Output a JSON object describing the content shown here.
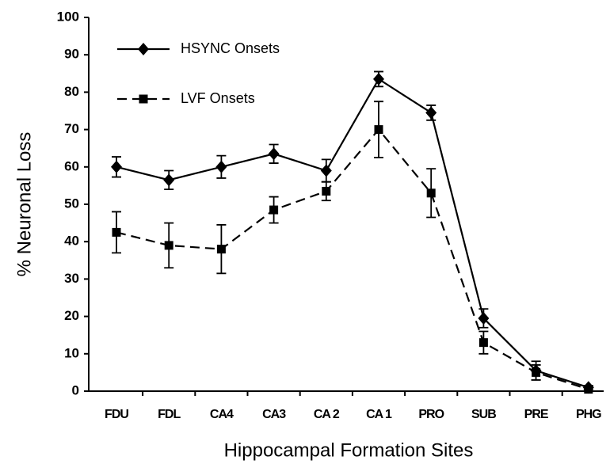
{
  "chart_data": {
    "type": "line",
    "xlabel": "Hippocampal Formation Sites",
    "ylabel": "% Neuronal Loss",
    "categories": [
      "FDU",
      "FDL",
      "CA4",
      "CA3",
      "CA 2",
      "CA 1",
      "PRO",
      "SUB",
      "PRE",
      "PHG"
    ],
    "series": [
      {
        "name": "HSYNC Onsets",
        "color": "#000000",
        "dash": "solid",
        "marker": "diamond",
        "values": [
          60,
          56.5,
          60,
          63.5,
          59,
          83.5,
          74.5,
          19.5,
          5.5,
          1
        ],
        "errors": [
          2.7,
          2.5,
          3,
          2.5,
          3,
          2,
          2,
          2.5,
          2.5,
          0.5
        ]
      },
      {
        "name": "LVF Onsets",
        "color": "#000000",
        "dash": "dashed",
        "marker": "square",
        "values": [
          42.5,
          39,
          38,
          48.5,
          53.5,
          70,
          53,
          13,
          5,
          0.5
        ],
        "errors": [
          5.5,
          6,
          6.5,
          3.5,
          2.5,
          7.5,
          6.5,
          3,
          2,
          0.5
        ]
      }
    ],
    "ylim": [
      0,
      100
    ],
    "yticks": [
      0,
      10,
      20,
      30,
      40,
      50,
      60,
      70,
      80,
      90,
      100
    ],
    "legend": "upper left",
    "grid": false
  }
}
